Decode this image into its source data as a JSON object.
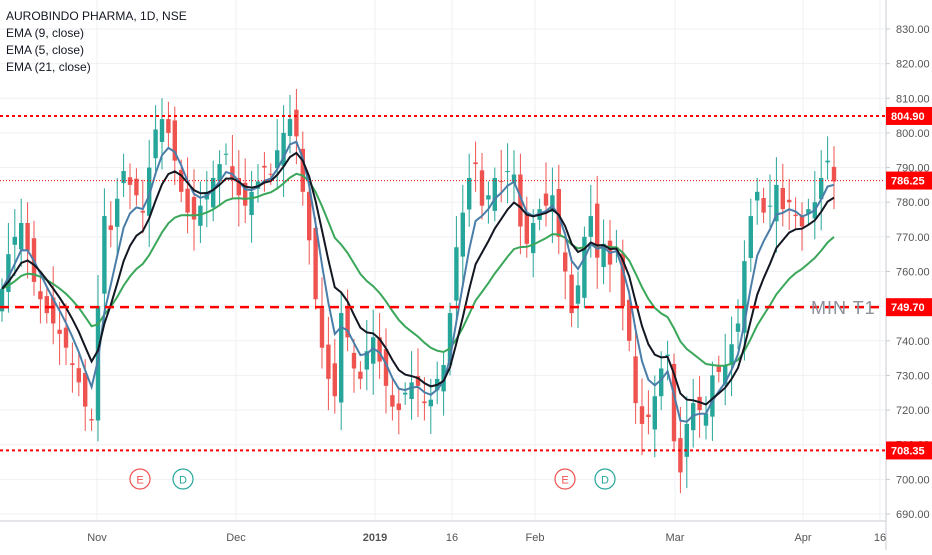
{
  "header": {
    "symbol": "AUROBINDO PHARMA, 1D, NSE",
    "indicators": [
      "EMA (9, close)",
      "EMA (5, close)",
      "EMA (21, close)"
    ]
  },
  "colors": {
    "up": "#26a69a",
    "down": "#ef5350",
    "ema9": "#131722",
    "ema5": "#4a7ea8",
    "ema21": "#3aa75a",
    "level_line": "#ff0000",
    "label_bg": "#ff0000",
    "label_text": "#ffffff",
    "axis_text": "#555555",
    "grid": "#eef0f3"
  },
  "price_axis_ticks": [
    "830.00",
    "820.00",
    "810.00",
    "800.00",
    "790.00",
    "780.00",
    "770.00",
    "760.00",
    "750.00",
    "740.00",
    "730.00",
    "720.00",
    "710.00",
    "700.00",
    "690.00"
  ],
  "time_axis_labels": [
    "Nov",
    "Dec",
    "2019",
    "16",
    "Feb",
    "Mar",
    "Apr",
    "16"
  ],
  "annotations": {
    "min_t1": "MIN T1",
    "events": [
      "E",
      "D",
      "E",
      "D"
    ]
  },
  "chart_data": {
    "type": "candlestick",
    "title": "AUROBINDO PHARMA, 1D, NSE",
    "ylim": [
      687,
      834
    ],
    "y_axis_position": "right",
    "grid": true,
    "horizontal_levels": [
      {
        "value": 804.9,
        "label": "804.90",
        "style": "dotted"
      },
      {
        "value": 786.25,
        "label": "786.25",
        "style": "fine-dotted"
      },
      {
        "value": 749.7,
        "label": "749.70",
        "style": "dashed"
      },
      {
        "value": 708.35,
        "label": "708.35",
        "style": "dotted"
      }
    ],
    "closes": [
      755,
      765,
      770,
      774,
      766,
      757,
      752,
      748,
      745,
      742,
      738,
      733,
      728,
      721,
      717,
      750,
      776,
      772,
      781,
      789,
      785,
      782,
      777,
      790,
      801,
      804,
      800,
      792,
      783,
      777,
      775,
      779,
      783,
      787,
      791,
      794,
      787,
      782,
      779,
      783,
      786,
      790,
      788,
      795,
      800,
      804,
      799,
      783,
      769,
      752,
      738,
      729,
      724,
      748,
      741,
      732,
      729,
      737,
      741,
      734,
      727,
      721,
      720,
      725,
      728,
      727,
      722,
      723,
      729,
      733,
      748,
      767,
      777,
      787,
      791,
      779,
      782,
      787,
      786,
      789,
      788,
      773,
      768,
      774,
      778,
      779,
      782,
      770,
      760,
      748,
      756,
      770,
      776,
      764,
      768,
      762,
      767,
      750,
      740,
      722,
      716,
      718,
      724,
      732,
      736,
      711,
      702,
      716,
      722,
      720,
      719,
      730,
      731,
      733,
      739,
      745,
      763,
      776,
      783,
      777,
      779,
      785,
      778,
      780,
      776,
      773,
      778,
      780,
      787,
      792,
      786
    ]
  }
}
